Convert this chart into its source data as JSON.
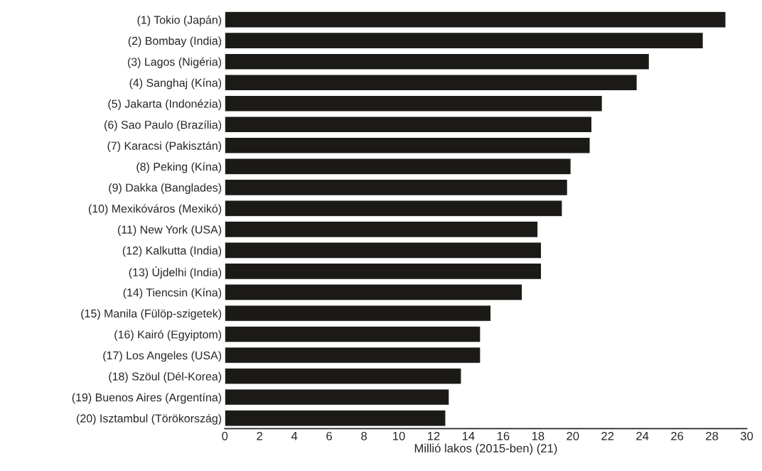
{
  "chart_data": {
    "type": "bar",
    "orientation": "horizontal",
    "xlabel": "Millió lakos (2015-ben) (21)",
    "categories": [
      "(1) Tokio (Japán)",
      "(2) Bombay (India)",
      "(3) Lagos (Nigéria)",
      "(4) Sanghaj (Kína)",
      "(5) Jakarta (Indonézia)",
      "(6) Sao Paulo (Brazília)",
      "(7) Karacsi (Pakisztán)",
      "(8) Peking (Kína)",
      "(9) Dakka (Banglades)",
      "(10) Mexikóváros (Mexikó)",
      "(11) New York (USA)",
      "(12) Kalkutta (India)",
      "(13) Újdelhi (India)",
      "(14) Tiencsin (Kína)",
      "(15) Manila (Fülöp-szigetek)",
      "(16) Kairó (Egyiptom)",
      "(17) Los Angeles (USA)",
      "(18) Szöul (Dél-Korea)",
      "(19) Buenos Aires (Argentína)",
      "(20) Isztambul (Törökország)"
    ],
    "values": [
      28.8,
      27.5,
      24.4,
      23.7,
      21.7,
      21.1,
      21.0,
      19.9,
      19.7,
      19.4,
      18.0,
      18.2,
      18.2,
      17.1,
      15.3,
      14.7,
      14.7,
      13.6,
      12.9,
      12.7
    ],
    "color": "#1c1a17",
    "xlim": [
      0,
      30
    ],
    "xticks": [
      0,
      2,
      4,
      6,
      8,
      10,
      12,
      14,
      16,
      18,
      20,
      22,
      24,
      26,
      28,
      30
    ],
    "grid": false,
    "legend": false
  }
}
